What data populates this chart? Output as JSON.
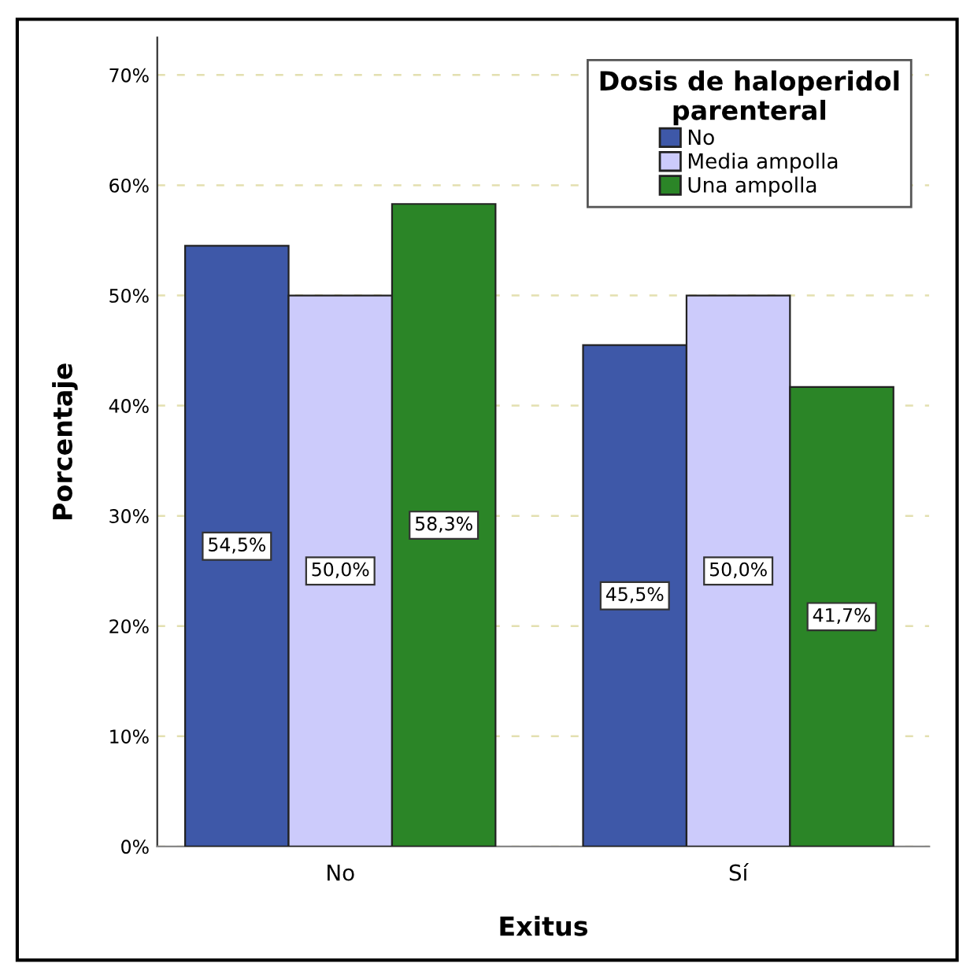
{
  "chart_data": {
    "type": "bar",
    "xlabel": "Exitus",
    "ylabel": "Porcentaje",
    "legend_title": "Dosis de haloperidol\nparenteral",
    "categories": [
      "No",
      "Sí"
    ],
    "series": [
      {
        "name": "No",
        "color": "#3e58a8",
        "values": [
          54.5,
          45.5
        ],
        "value_labels": [
          "54,5%",
          "45,5%"
        ]
      },
      {
        "name": "Media ampolla",
        "color": "#cccbfb",
        "values": [
          50.0,
          50.0
        ],
        "value_labels": [
          "50,0%",
          "50,0%"
        ]
      },
      {
        "name": "Una ampolla",
        "color": "#2b8527",
        "values": [
          58.3,
          41.7
        ],
        "value_labels": [
          "58,3%",
          "41,7%"
        ]
      }
    ],
    "ylim": [
      0,
      73.4
    ],
    "yticks": [
      {
        "value": 0,
        "label": "0%"
      },
      {
        "value": 10,
        "label": "10%"
      },
      {
        "value": 20,
        "label": "20%"
      },
      {
        "value": 30,
        "label": "30%"
      },
      {
        "value": 40,
        "label": "40%"
      },
      {
        "value": 50,
        "label": "50%"
      },
      {
        "value": 60,
        "label": "60%"
      },
      {
        "value": 70,
        "label": "70%"
      }
    ],
    "grid": "y",
    "legend": "top right"
  }
}
